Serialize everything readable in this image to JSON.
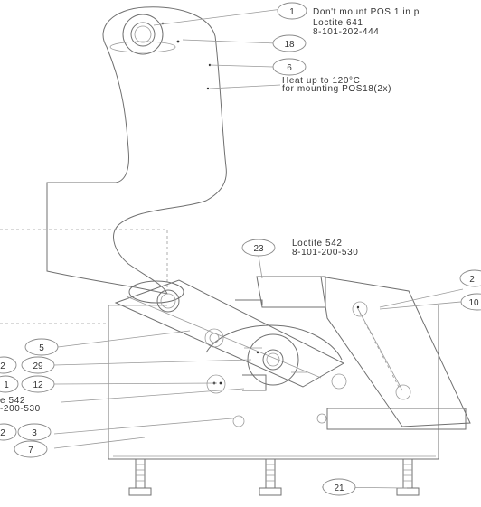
{
  "colors": {
    "line": "#707070",
    "text": "#333333",
    "background": "#ffffff"
  },
  "balloons": [
    {
      "id": "b1",
      "label": "1"
    },
    {
      "id": "b18",
      "label": "18"
    },
    {
      "id": "b6",
      "label": "6"
    },
    {
      "id": "b23",
      "label": "23"
    },
    {
      "id": "b2a",
      "label": "2"
    },
    {
      "id": "b10",
      "label": "10"
    },
    {
      "id": "b5",
      "label": "5"
    },
    {
      "id": "b2b",
      "label": "2"
    },
    {
      "id": "b29",
      "label": "29"
    },
    {
      "id": "b1b",
      "label": "1"
    },
    {
      "id": "b12",
      "label": "12"
    },
    {
      "id": "b2c",
      "label": "2"
    },
    {
      "id": "b3",
      "label": "3"
    },
    {
      "id": "b7",
      "label": "7"
    },
    {
      "id": "b21",
      "label": "21"
    }
  ],
  "notes": {
    "pos1_note": "Don't mount POS 1 in p",
    "loctite641_name": "Loctite 641",
    "loctite641_code": "8-101-202-444",
    "heat_line1": "Heat up to 120°C",
    "heat_line2": "for mounting POS18(2x)",
    "loctite542_top_name": "Loctite 542",
    "loctite542_top_code": "8-101-200-530",
    "loctite542_left_name": "e 542",
    "loctite542_left_code": "-200-530"
  }
}
